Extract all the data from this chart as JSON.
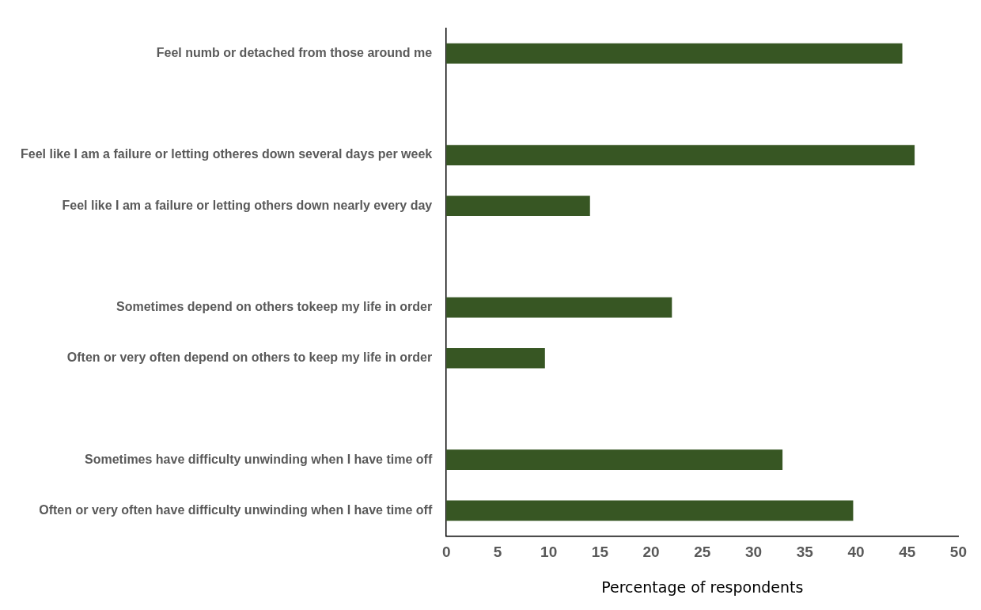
{
  "chart_data": {
    "type": "bar",
    "orientation": "horizontal",
    "xlabel": "Percentage of respondents",
    "categories": [
      "Feel numb or detached from those around me",
      null,
      "Feel like I am a failure or letting otheres down several days per week",
      "Feel like I am a failure or letting others down nearly every day",
      null,
      "Sometimes depend on others tokeep my life in order",
      "Often or very often depend on others to keep my life in order",
      null,
      "Sometimes have difficulty unwinding when I have time off",
      "Often or very often have difficulty unwinding when I have time off"
    ],
    "values": [
      44.5,
      null,
      45.7,
      14.0,
      null,
      22.0,
      9.6,
      null,
      32.8,
      39.7
    ],
    "color": "#375623",
    "xlim": [
      0,
      50
    ],
    "xticks": [
      0,
      5,
      10,
      15,
      20,
      25,
      30,
      35,
      40,
      45,
      50
    ],
    "grid": false,
    "legend": false
  }
}
